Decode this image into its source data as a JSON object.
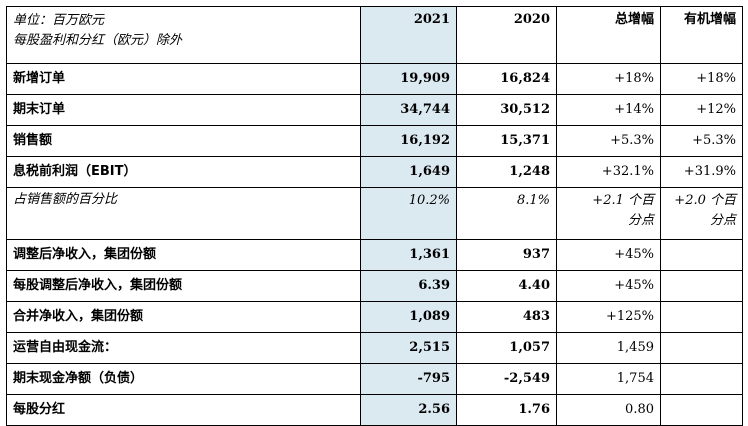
{
  "header": {
    "unit_line1": "单位：百万欧元",
    "unit_line2": "每股盈利和分红（欧元）除外",
    "col_2021": "2021",
    "col_2020": "2020",
    "col_total": "总增幅",
    "col_organic": "有机增幅"
  },
  "rows": [
    {
      "label": "新增订单",
      "v2021": "19,909",
      "v2020": "16,824",
      "total": "+18%",
      "organic": "+18%"
    },
    {
      "label": "期末订单",
      "v2021": "34,744",
      "v2020": "30,512",
      "total": "+14%",
      "organic": "+12%"
    },
    {
      "label": "销售额",
      "v2021": "16,192",
      "v2020": "15,371",
      "total": "+5.3%",
      "organic": "+5.3%"
    },
    {
      "label": "息税前利润（EBIT）",
      "v2021": "1,649",
      "v2020": "1,248",
      "total": "+32.1%",
      "organic": "+31.9%"
    },
    {
      "label": "占销售额的百分比",
      "v2021": "10.2%",
      "v2020": "8.1%",
      "total_line1": "+2.1 个百",
      "total_line2": "分点",
      "organic_line1": "+2.0 个百",
      "organic_line2": "分点"
    },
    {
      "label": "调整后净收入，集团份额",
      "v2021": "1,361",
      "v2020": "937",
      "total": "+45%",
      "organic": ""
    },
    {
      "label": "每股调整后净收入，集团份额",
      "v2021": "6.39",
      "v2020": "4.40",
      "total": "+45%",
      "organic": ""
    },
    {
      "label": "合并净收入，集团份额",
      "v2021": "1,089",
      "v2020": "483",
      "total": "+125%",
      "organic": ""
    },
    {
      "label": "运营自由现金流：",
      "v2021": "2,515",
      "v2020": "1,057",
      "total": "1,459",
      "organic": ""
    },
    {
      "label": "期末现金净额（负债）",
      "v2021": "-795",
      "v2020": "-2,549",
      "total": "1,754",
      "organic": ""
    },
    {
      "label": "每股分红",
      "v2021": "2.56",
      "v2020": "1.76",
      "total": "0.80",
      "organic": ""
    }
  ]
}
